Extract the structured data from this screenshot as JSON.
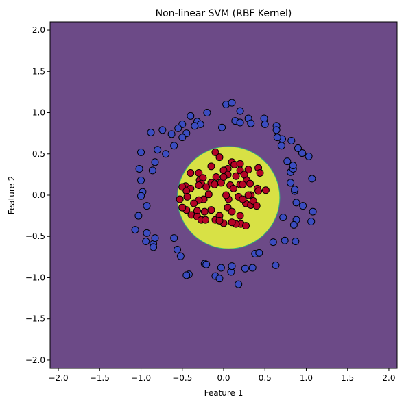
{
  "chart_data": {
    "type": "scatter",
    "title": "Non-linear SVM (RBF Kernel)",
    "xlabel": "Feature 1",
    "ylabel": "Feature 2",
    "xlim": [
      -2.1,
      2.1
    ],
    "ylim": [
      -2.1,
      2.1
    ],
    "xticks": [
      -2.0,
      -1.5,
      -1.0,
      -0.5,
      0.0,
      0.5,
      1.0,
      1.5,
      2.0
    ],
    "yticks": [
      -2.0,
      -1.5,
      -1.0,
      -0.5,
      0.0,
      0.5,
      1.0,
      1.5,
      2.0
    ],
    "xtick_labels": [
      "−2.0",
      "−1.5",
      "−1.0",
      "−0.5",
      "0.0",
      "0.5",
      "1.0",
      "1.5",
      "2.0"
    ],
    "ytick_labels": [
      "−2.0",
      "−1.5",
      "−1.0",
      "−0.5",
      "0.0",
      "0.5",
      "1.0",
      "1.5",
      "2.0"
    ],
    "grid": false,
    "background_region": {
      "color": "#6c4a87"
    },
    "decision_region": {
      "center": [
        0.06,
        -0.03
      ],
      "radius": 0.62,
      "color": "#d8e145",
      "edge_color": "#2fb47c"
    },
    "series": [
      {
        "color": "#3b4cc0",
        "points": [
          [
            0.03,
            1.1
          ],
          [
            0.1,
            1.12
          ],
          [
            -0.2,
            1.0
          ],
          [
            -0.4,
            0.96
          ],
          [
            0.2,
            1.02
          ],
          [
            0.3,
            0.93
          ],
          [
            0.49,
            0.93
          ],
          [
            0.5,
            0.86
          ],
          [
            0.64,
            0.84
          ],
          [
            0.64,
            0.79
          ],
          [
            0.14,
            0.9
          ],
          [
            0.2,
            0.88
          ],
          [
            0.33,
            0.87
          ],
          [
            -0.02,
            0.82
          ],
          [
            -0.32,
            0.89
          ],
          [
            -0.28,
            0.86
          ],
          [
            -0.5,
            0.86
          ],
          [
            -0.55,
            0.81
          ],
          [
            -0.74,
            0.79
          ],
          [
            -0.88,
            0.76
          ],
          [
            -0.63,
            0.74
          ],
          [
            -0.45,
            0.75
          ],
          [
            -0.35,
            0.84
          ],
          [
            -0.5,
            0.7
          ],
          [
            -0.6,
            0.6
          ],
          [
            -0.8,
            0.55
          ],
          [
            -0.7,
            0.5
          ],
          [
            -1.0,
            0.52
          ],
          [
            -0.83,
            0.4
          ],
          [
            -1.02,
            0.32
          ],
          [
            -0.86,
            0.3
          ],
          [
            -1.0,
            0.18
          ],
          [
            -0.98,
            0.04
          ],
          [
            -1.0,
            -0.01
          ],
          [
            -0.93,
            -0.13
          ],
          [
            -1.03,
            -0.25
          ],
          [
            -0.93,
            -0.46
          ],
          [
            -0.94,
            -0.56
          ],
          [
            -0.85,
            -0.59
          ],
          [
            -0.83,
            -0.52
          ],
          [
            -1.07,
            -0.42
          ],
          [
            -0.85,
            -0.63
          ],
          [
            -0.6,
            -0.52
          ],
          [
            -0.56,
            -0.66
          ],
          [
            -0.52,
            -0.74
          ],
          [
            -0.23,
            -0.83
          ],
          [
            -0.21,
            -0.84
          ],
          [
            -0.42,
            -0.96
          ],
          [
            -0.45,
            -0.97
          ],
          [
            -0.1,
            -0.98
          ],
          [
            -0.05,
            -1.01
          ],
          [
            -0.03,
            -0.88
          ],
          [
            0.09,
            -0.93
          ],
          [
            0.1,
            -0.86
          ],
          [
            0.18,
            -1.08
          ],
          [
            0.26,
            -0.89
          ],
          [
            0.35,
            -0.88
          ],
          [
            0.38,
            -0.71
          ],
          [
            0.43,
            -0.7
          ],
          [
            0.63,
            -0.85
          ],
          [
            0.6,
            -0.57
          ],
          [
            0.74,
            -0.55
          ],
          [
            0.87,
            -0.56
          ],
          [
            0.88,
            -0.3
          ],
          [
            0.85,
            -0.36
          ],
          [
            0.72,
            -0.27
          ],
          [
            0.96,
            -0.13
          ],
          [
            0.88,
            -0.09
          ],
          [
            0.86,
            0.05
          ],
          [
            0.86,
            0.07
          ],
          [
            0.81,
            0.15
          ],
          [
            0.81,
            0.28
          ],
          [
            0.84,
            0.32
          ],
          [
            0.84,
            0.36
          ],
          [
            0.77,
            0.41
          ],
          [
            0.95,
            0.51
          ],
          [
            1.03,
            0.47
          ],
          [
            0.9,
            0.57
          ],
          [
            0.82,
            0.66
          ],
          [
            0.7,
            0.6
          ],
          [
            0.71,
            0.68
          ],
          [
            0.65,
            0.7
          ],
          [
            1.07,
            0.2
          ],
          [
            1.08,
            -0.2
          ],
          [
            1.06,
            -0.32
          ]
        ]
      },
      {
        "color": "#b40426",
        "points": [
          [
            -0.1,
            0.52
          ],
          [
            -0.05,
            0.46
          ],
          [
            0.1,
            0.4
          ],
          [
            0.13,
            0.37
          ],
          [
            0.2,
            0.38
          ],
          [
            0.2,
            0.3
          ],
          [
            0.3,
            0.31
          ],
          [
            0.42,
            0.33
          ],
          [
            0.44,
            0.27
          ],
          [
            -0.15,
            0.35
          ],
          [
            0.05,
            0.32
          ],
          [
            -0.09,
            0.22
          ],
          [
            0.0,
            0.3
          ],
          [
            0.05,
            0.25
          ],
          [
            0.15,
            0.23
          ],
          [
            0.28,
            0.18
          ],
          [
            0.25,
            0.25
          ],
          [
            -0.3,
            0.27
          ],
          [
            -0.4,
            0.27
          ],
          [
            -0.29,
            0.18
          ],
          [
            -0.25,
            0.21
          ],
          [
            -0.27,
            0.14
          ],
          [
            -0.3,
            0.12
          ],
          [
            -0.21,
            0.1
          ],
          [
            -0.15,
            0.15
          ],
          [
            -0.11,
            0.13
          ],
          [
            -0.46,
            0.11
          ],
          [
            -0.5,
            0.1
          ],
          [
            -0.4,
            0.08
          ],
          [
            -0.45,
            0.05
          ],
          [
            -0.18,
            0.01
          ],
          [
            -0.03,
            0.15
          ],
          [
            0.0,
            0.22
          ],
          [
            0.08,
            0.12
          ],
          [
            0.12,
            0.08
          ],
          [
            0.2,
            0.13
          ],
          [
            0.23,
            0.13
          ],
          [
            0.32,
            0.14
          ],
          [
            0.41,
            0.08
          ],
          [
            0.42,
            0.05
          ],
          [
            0.51,
            0.06
          ],
          [
            0.33,
            0.0
          ],
          [
            0.3,
            0.0
          ],
          [
            0.18,
            -0.02
          ],
          [
            0.06,
            -0.05
          ],
          [
            0.03,
            0.0
          ],
          [
            -0.24,
            -0.05
          ],
          [
            -0.3,
            -0.06
          ],
          [
            -0.36,
            -0.1
          ],
          [
            -0.44,
            -0.02
          ],
          [
            -0.53,
            -0.05
          ],
          [
            -0.45,
            -0.18
          ],
          [
            -0.5,
            -0.15
          ],
          [
            -0.39,
            -0.24
          ],
          [
            -0.32,
            -0.19
          ],
          [
            -0.32,
            -0.26
          ],
          [
            -0.27,
            -0.3
          ],
          [
            -0.22,
            -0.3
          ],
          [
            -0.23,
            -0.2
          ],
          [
            -0.15,
            -0.18
          ],
          [
            -0.1,
            -0.3
          ],
          [
            -0.05,
            -0.25
          ],
          [
            0.05,
            -0.15
          ],
          [
            0.1,
            -0.2
          ],
          [
            0.2,
            -0.25
          ],
          [
            0.21,
            -0.35
          ],
          [
            0.15,
            -0.35
          ],
          [
            0.1,
            -0.33
          ],
          [
            0.0,
            -0.34
          ],
          [
            -0.05,
            -0.31
          ],
          [
            0.27,
            -0.1
          ],
          [
            0.33,
            -0.12
          ],
          [
            0.36,
            -0.07
          ],
          [
            0.4,
            -0.13
          ],
          [
            0.23,
            -0.05
          ],
          [
            0.27,
            -0.37
          ]
        ]
      }
    ]
  }
}
